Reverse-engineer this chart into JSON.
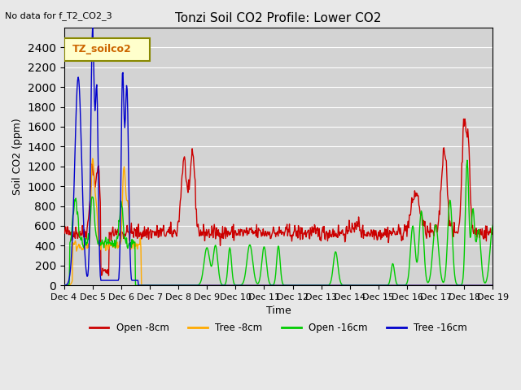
{
  "title": "Tonzi Soil CO2 Profile: Lower CO2",
  "subtitle": "No data for f_T2_CO2_3",
  "ylabel": "Soil CO2 (ppm)",
  "xlabel": "Time",
  "legend_label": "TZ_soilco2",
  "ylim": [
    0,
    2600
  ],
  "yticks": [
    0,
    200,
    400,
    600,
    800,
    1000,
    1200,
    1400,
    1600,
    1800,
    2000,
    2200,
    2400
  ],
  "xtick_labels": [
    "Dec 4",
    "Dec 5",
    "Dec 6",
    "Dec 7",
    "Dec 8",
    "Dec 9",
    "Dec 10",
    "Dec 11",
    "Dec 12",
    "Dec 13",
    "Dec 14",
    "Dec 15",
    "Dec 16",
    "Dec 17",
    "Dec 18",
    "Dec 19"
  ],
  "series_colors": {
    "open8": "#cc0000",
    "tree8": "#ffaa00",
    "open16": "#00cc00",
    "tree16": "#0000cc"
  },
  "series_labels": [
    "Open -8cm",
    "Tree -8cm",
    "Open -16cm",
    "Tree -16cm"
  ],
  "background_color": "#e8e8e8",
  "plot_bg_color": "#d8d8d8"
}
